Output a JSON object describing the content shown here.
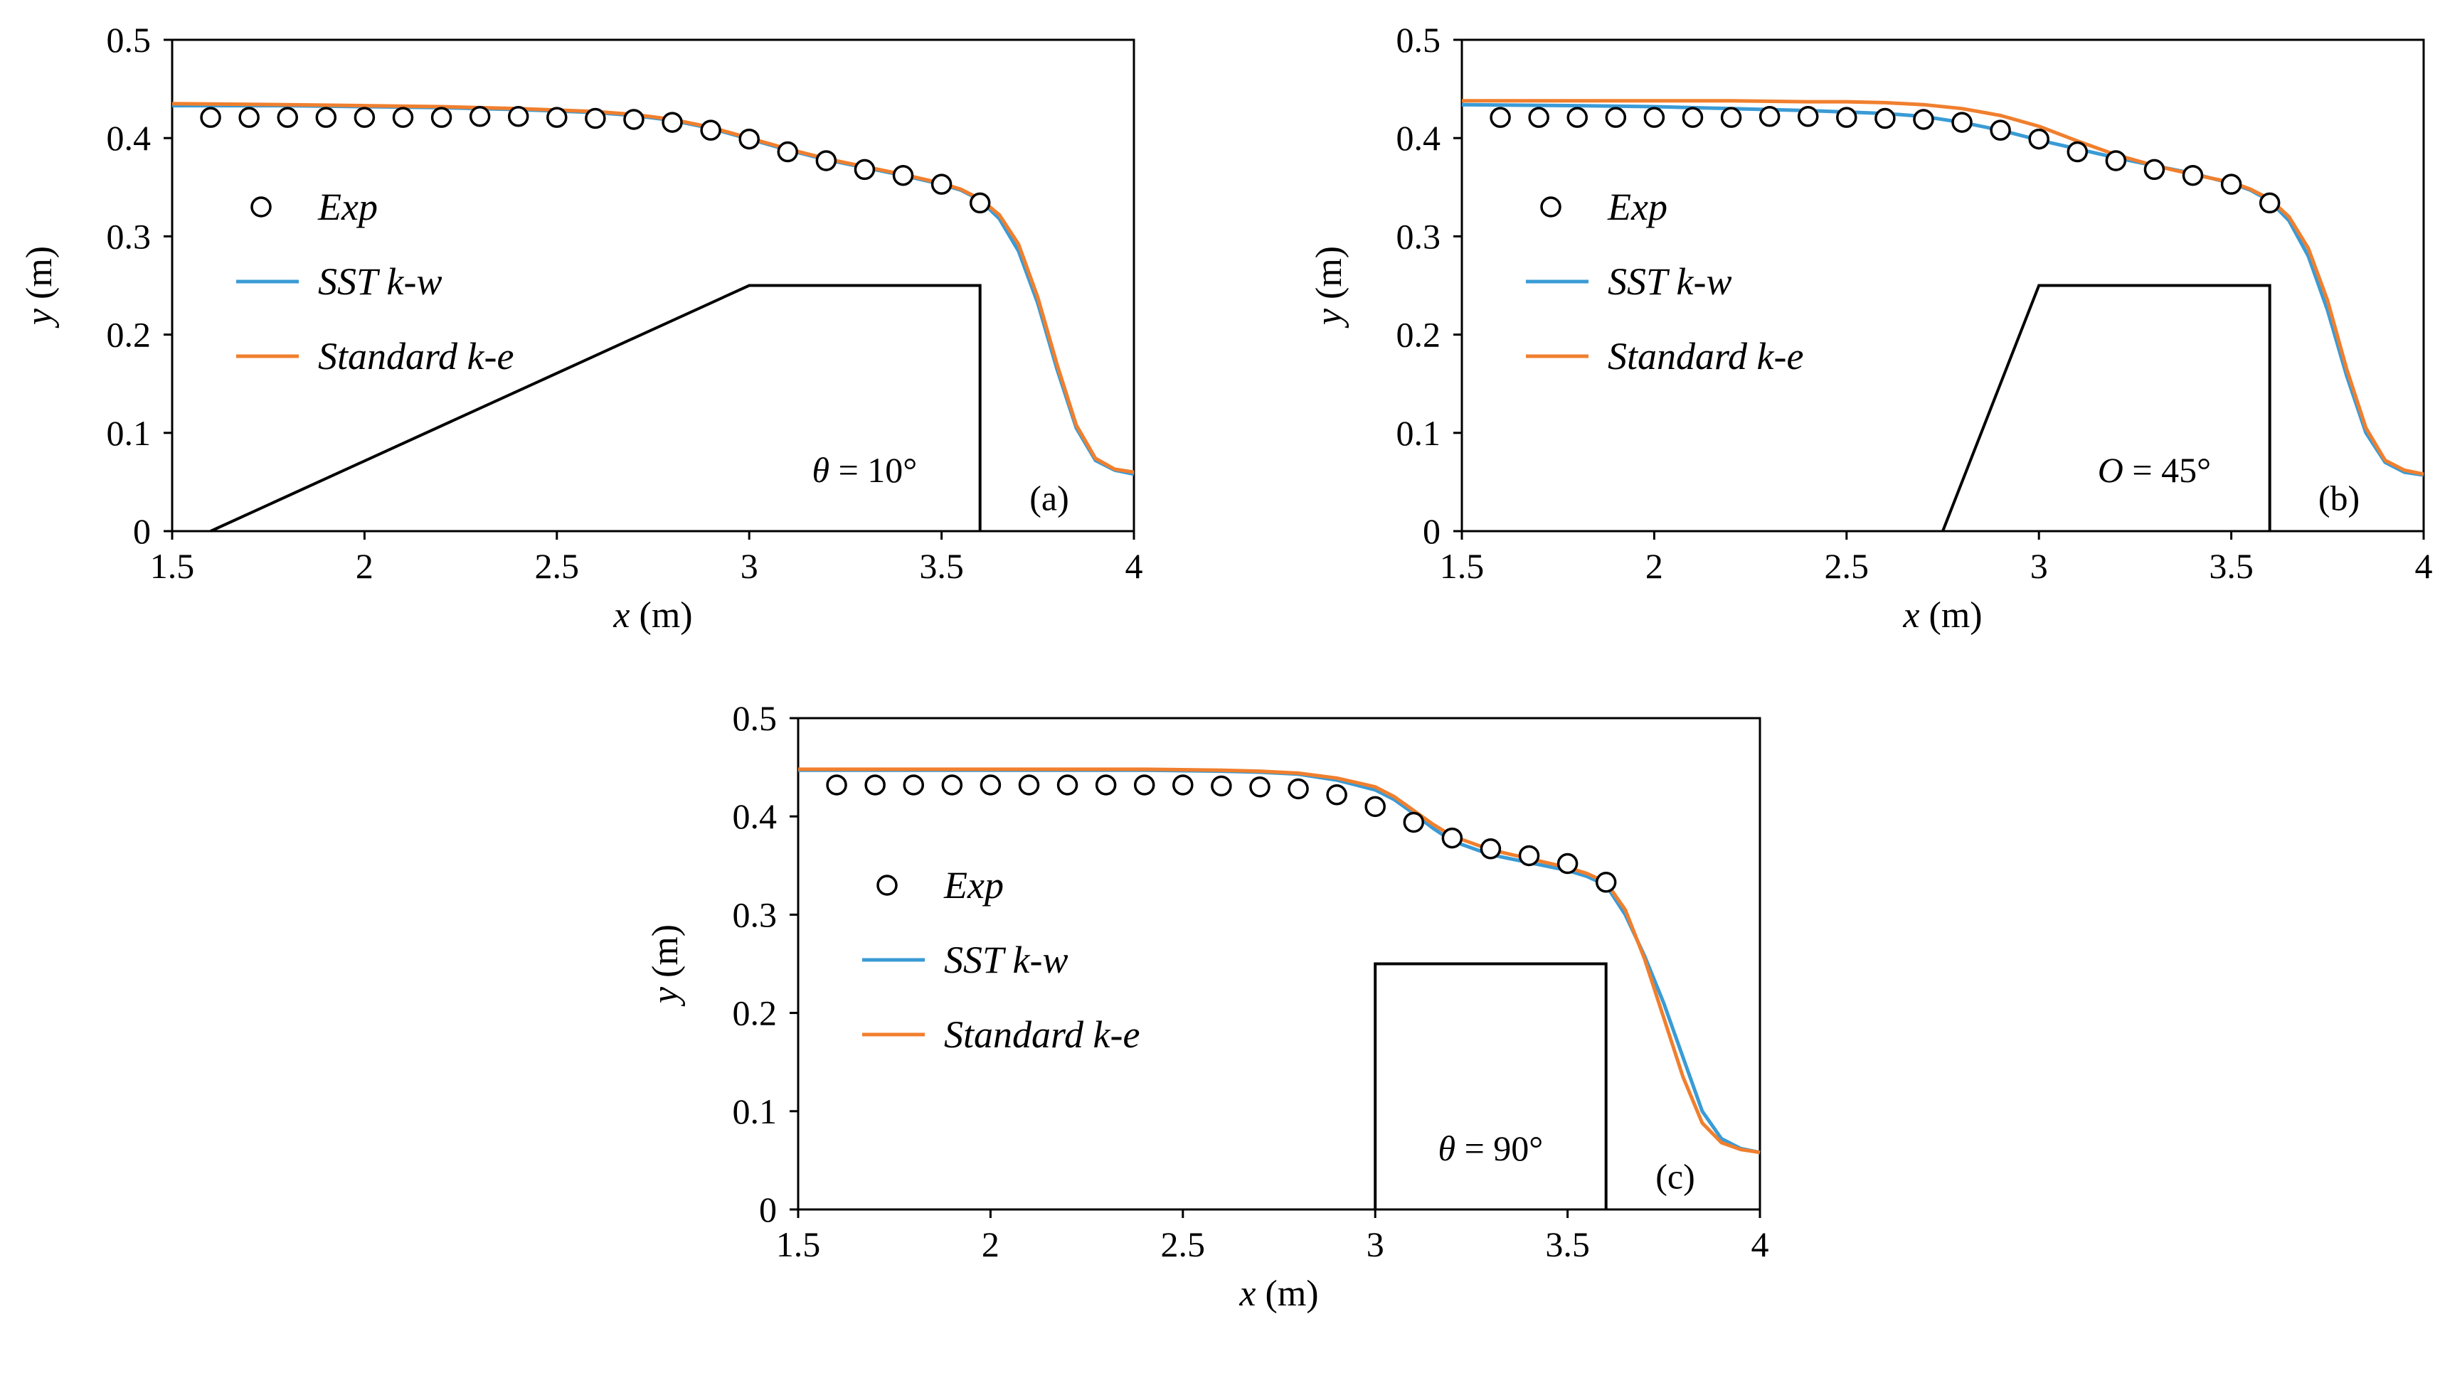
{
  "chart_data": [
    {
      "type": "line",
      "panel_label": "(a)",
      "annotation": {
        "symbol": "θ",
        "text": " = 10°"
      },
      "xlabel": {
        "var": "x",
        "unit": " (m)"
      },
      "ylabel": {
        "var": "y",
        "unit": " (m)"
      },
      "xlim": [
        1.5,
        4
      ],
      "ylim": [
        0,
        0.5
      ],
      "x_ticks": [
        1.5,
        2,
        2.5,
        3,
        3.5,
        4
      ],
      "x_tick_labels": [
        "1.5",
        "2",
        "2.5",
        "3",
        "3.5",
        "4"
      ],
      "y_ticks": [
        0,
        0.1,
        0.2,
        0.3,
        0.4,
        0.5
      ],
      "y_tick_labels": [
        "0",
        "0.1",
        "0.2",
        "0.3",
        "0.4",
        "0.5"
      ],
      "legend": [
        "Exp",
        "SST k-w",
        "Standard k-e"
      ],
      "legend_position": "left",
      "colors": {
        "exp": "#000000",
        "sst": "#3a9bd5",
        "ke": "#f07f2e",
        "weir": "#000000"
      },
      "weir_outline": {
        "x": [
          1.6,
          3.0,
          3.6,
          3.6
        ],
        "y": [
          0,
          0.25,
          0.25,
          0
        ]
      },
      "series": [
        {
          "name": "Exp",
          "style": "markers",
          "x": [
            1.6,
            1.7,
            1.8,
            1.9,
            2.0,
            2.1,
            2.2,
            2.3,
            2.4,
            2.5,
            2.6,
            2.7,
            2.8,
            2.9,
            3.0,
            3.1,
            3.2,
            3.3,
            3.4,
            3.5,
            3.6
          ],
          "y": [
            0.421,
            0.421,
            0.421,
            0.421,
            0.421,
            0.421,
            0.421,
            0.422,
            0.422,
            0.421,
            0.42,
            0.419,
            0.416,
            0.408,
            0.399,
            0.386,
            0.377,
            0.368,
            0.362,
            0.353,
            0.334
          ]
        },
        {
          "name": "SST k-w",
          "style": "line",
          "x": [
            1.5,
            1.8,
            2.0,
            2.2,
            2.4,
            2.6,
            2.7,
            2.8,
            2.9,
            3.0,
            3.1,
            3.2,
            3.3,
            3.4,
            3.5,
            3.55,
            3.6,
            3.65,
            3.7,
            3.75,
            3.8,
            3.85,
            3.9,
            3.95,
            4.0
          ],
          "y": [
            0.433,
            0.433,
            0.432,
            0.431,
            0.429,
            0.426,
            0.423,
            0.418,
            0.41,
            0.399,
            0.388,
            0.378,
            0.37,
            0.362,
            0.353,
            0.347,
            0.337,
            0.318,
            0.285,
            0.232,
            0.165,
            0.105,
            0.072,
            0.062,
            0.058
          ]
        },
        {
          "name": "Standard k-e",
          "style": "line",
          "x": [
            1.5,
            1.8,
            2.0,
            2.2,
            2.4,
            2.6,
            2.7,
            2.8,
            2.9,
            3.0,
            3.1,
            3.2,
            3.3,
            3.4,
            3.5,
            3.55,
            3.6,
            3.65,
            3.7,
            3.75,
            3.8,
            3.85,
            3.9,
            3.95,
            4.0
          ],
          "y": [
            0.435,
            0.434,
            0.433,
            0.432,
            0.43,
            0.427,
            0.424,
            0.419,
            0.411,
            0.4,
            0.389,
            0.379,
            0.371,
            0.363,
            0.354,
            0.348,
            0.338,
            0.322,
            0.292,
            0.238,
            0.17,
            0.108,
            0.074,
            0.063,
            0.06
          ]
        }
      ]
    },
    {
      "type": "line",
      "panel_label": "(b)",
      "annotation": {
        "symbol": "O",
        "text": " = 45°"
      },
      "xlabel": {
        "var": "x",
        "unit": " (m)"
      },
      "ylabel": {
        "var": "y",
        "unit": " (m)"
      },
      "xlim": [
        1.5,
        4
      ],
      "ylim": [
        0,
        0.5
      ],
      "x_ticks": [
        1.5,
        2,
        2.5,
        3,
        3.5,
        4
      ],
      "x_tick_labels": [
        "1.5",
        "2",
        "2.5",
        "3",
        "3.5",
        "4"
      ],
      "y_ticks": [
        0,
        0.1,
        0.2,
        0.3,
        0.4,
        0.5
      ],
      "y_tick_labels": [
        "0",
        "0.1",
        "0.2",
        "0.3",
        "0.4",
        "0.5"
      ],
      "legend": [
        "Exp",
        "SST k-w",
        "Standard k-e"
      ],
      "legend_position": "left",
      "colors": {
        "exp": "#000000",
        "sst": "#3a9bd5",
        "ke": "#f07f2e",
        "weir": "#000000"
      },
      "weir_outline": {
        "x": [
          2.75,
          3.0,
          3.6,
          3.6
        ],
        "y": [
          0,
          0.25,
          0.25,
          0
        ]
      },
      "series": [
        {
          "name": "Exp",
          "style": "markers",
          "x": [
            1.6,
            1.7,
            1.8,
            1.9,
            2.0,
            2.1,
            2.2,
            2.3,
            2.4,
            2.5,
            2.6,
            2.7,
            2.8,
            2.9,
            3.0,
            3.1,
            3.2,
            3.3,
            3.4,
            3.5,
            3.6
          ],
          "y": [
            0.421,
            0.421,
            0.421,
            0.421,
            0.421,
            0.421,
            0.421,
            0.422,
            0.422,
            0.421,
            0.42,
            0.419,
            0.416,
            0.408,
            0.399,
            0.386,
            0.377,
            0.368,
            0.362,
            0.353,
            0.334
          ]
        },
        {
          "name": "SST k-w",
          "style": "line",
          "x": [
            1.5,
            1.8,
            2.0,
            2.2,
            2.4,
            2.6,
            2.7,
            2.8,
            2.9,
            3.0,
            3.1,
            3.2,
            3.3,
            3.4,
            3.5,
            3.55,
            3.6,
            3.65,
            3.7,
            3.75,
            3.8,
            3.85,
            3.9,
            3.95,
            4.0
          ],
          "y": [
            0.434,
            0.433,
            0.432,
            0.43,
            0.428,
            0.425,
            0.422,
            0.416,
            0.408,
            0.398,
            0.389,
            0.38,
            0.372,
            0.364,
            0.354,
            0.347,
            0.336,
            0.316,
            0.28,
            0.225,
            0.158,
            0.1,
            0.07,
            0.06,
            0.057
          ]
        },
        {
          "name": "Standard k-e",
          "style": "line",
          "x": [
            1.5,
            1.8,
            2.0,
            2.2,
            2.4,
            2.5,
            2.6,
            2.7,
            2.8,
            2.9,
            3.0,
            3.1,
            3.2,
            3.3,
            3.4,
            3.5,
            3.55,
            3.6,
            3.65,
            3.7,
            3.75,
            3.8,
            3.85,
            3.9,
            3.95,
            4.0
          ],
          "y": [
            0.438,
            0.438,
            0.438,
            0.438,
            0.437,
            0.437,
            0.436,
            0.434,
            0.43,
            0.423,
            0.412,
            0.397,
            0.383,
            0.372,
            0.363,
            0.355,
            0.348,
            0.338,
            0.32,
            0.288,
            0.235,
            0.165,
            0.105,
            0.072,
            0.062,
            0.058
          ]
        }
      ]
    },
    {
      "type": "line",
      "panel_label": "(c)",
      "annotation": {
        "symbol": "θ",
        "text": " = 90°"
      },
      "xlabel": {
        "var": "x",
        "unit": " (m)"
      },
      "ylabel": {
        "var": "y",
        "unit": " (m)"
      },
      "xlim": [
        1.5,
        4
      ],
      "ylim": [
        0,
        0.5
      ],
      "x_ticks": [
        1.5,
        2,
        2.5,
        3,
        3.5,
        4
      ],
      "x_tick_labels": [
        "1.5",
        "2",
        "2.5",
        "3",
        "3.5",
        "4"
      ],
      "y_ticks": [
        0,
        0.1,
        0.2,
        0.3,
        0.4,
        0.5
      ],
      "y_tick_labels": [
        "0",
        "0.1",
        "0.2",
        "0.3",
        "0.4",
        "0.5"
      ],
      "legend": [
        "Exp",
        "SST k-w",
        "Standard k-e"
      ],
      "legend_position": "left",
      "colors": {
        "exp": "#000000",
        "sst": "#3a9bd5",
        "ke": "#f07f2e",
        "weir": "#000000"
      },
      "weir_outline": {
        "x": [
          3.0,
          3.0,
          3.6,
          3.6
        ],
        "y": [
          0,
          0.25,
          0.25,
          0
        ]
      },
      "series": [
        {
          "name": "Exp",
          "style": "markers",
          "x": [
            1.6,
            1.7,
            1.8,
            1.9,
            2.0,
            2.1,
            2.2,
            2.3,
            2.4,
            2.5,
            2.6,
            2.7,
            2.8,
            2.9,
            3.0,
            3.1,
            3.2,
            3.3,
            3.4,
            3.5,
            3.6
          ],
          "y": [
            0.432,
            0.432,
            0.432,
            0.432,
            0.432,
            0.432,
            0.432,
            0.432,
            0.432,
            0.432,
            0.431,
            0.43,
            0.428,
            0.422,
            0.41,
            0.394,
            0.378,
            0.367,
            0.36,
            0.352,
            0.333
          ]
        },
        {
          "name": "SST k-w",
          "style": "line",
          "x": [
            1.5,
            1.8,
            2.0,
            2.2,
            2.4,
            2.6,
            2.7,
            2.8,
            2.9,
            3.0,
            3.05,
            3.1,
            3.15,
            3.2,
            3.3,
            3.4,
            3.5,
            3.55,
            3.6,
            3.65,
            3.7,
            3.75,
            3.8,
            3.85,
            3.9,
            3.95,
            4.0
          ],
          "y": [
            0.447,
            0.447,
            0.447,
            0.447,
            0.447,
            0.446,
            0.445,
            0.443,
            0.437,
            0.427,
            0.417,
            0.403,
            0.388,
            0.375,
            0.361,
            0.353,
            0.345,
            0.339,
            0.33,
            0.3,
            0.258,
            0.21,
            0.155,
            0.1,
            0.072,
            0.062,
            0.058
          ]
        },
        {
          "name": "Standard k-e",
          "style": "line",
          "x": [
            1.5,
            1.8,
            2.0,
            2.2,
            2.4,
            2.6,
            2.7,
            2.8,
            2.9,
            3.0,
            3.05,
            3.1,
            3.15,
            3.2,
            3.3,
            3.4,
            3.5,
            3.55,
            3.6,
            3.65,
            3.7,
            3.75,
            3.8,
            3.85,
            3.9,
            3.95,
            4.0
          ],
          "y": [
            0.448,
            0.448,
            0.448,
            0.448,
            0.448,
            0.447,
            0.446,
            0.444,
            0.439,
            0.43,
            0.42,
            0.406,
            0.392,
            0.38,
            0.366,
            0.357,
            0.348,
            0.342,
            0.333,
            0.305,
            0.255,
            0.195,
            0.135,
            0.088,
            0.068,
            0.061,
            0.058
          ]
        }
      ]
    }
  ]
}
